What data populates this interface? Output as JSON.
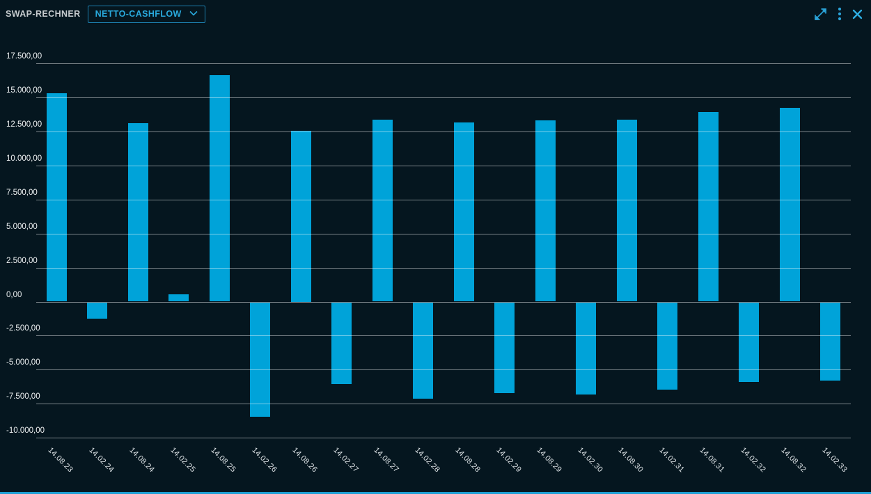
{
  "window": {
    "title": "SWAP-RECHNER",
    "view_selector": {
      "selected": "NETTO-CASHFLOW"
    },
    "toolbar_icons": [
      "expand-icon",
      "kebab-menu-icon",
      "close-icon"
    ]
  },
  "colors": {
    "background": "#05161F",
    "accent": "#29A9DC",
    "bar": "#00A3D9",
    "gridline": "rgba(255,255,255,0.48)",
    "axis_text": "#EDF1F2",
    "bottom_border": "#1E9FD4",
    "dropdown_border": "#1C7FAF"
  },
  "chart_data": {
    "type": "bar",
    "title": "",
    "xlabel": "",
    "ylabel": "",
    "grid": "horizontal",
    "legend": "none",
    "ylim": [
      -10000,
      17500
    ],
    "ytick_step": 2500,
    "ytick_values": [
      17500,
      15000,
      12500,
      10000,
      7500,
      5000,
      2500,
      0,
      -2500,
      -5000,
      -7500,
      -10000
    ],
    "ytick_labels": [
      "17.500,00",
      "15.000,00",
      "12.500,00",
      "10.000,00",
      "7.500,00",
      "5.000,00",
      "2.500,00",
      "0,00",
      "-2.500,00",
      "-5.000,00",
      "-7.500,00",
      "-10.000,00"
    ],
    "categories": [
      "14.08.23",
      "14.02.24",
      "14.08.24",
      "14.02.25",
      "14.08.25",
      "14.02.26",
      "14.08.26",
      "14.02.27",
      "14.08.27",
      "14.02.28",
      "14.08.28",
      "14.02.29",
      "14.08.29",
      "14.02.30",
      "14.08.30",
      "14.02.31",
      "14.08.31",
      "14.02.32",
      "14.08.32",
      "14.02.33"
    ],
    "values": [
      15300,
      -1250,
      13100,
      550,
      16650,
      -8450,
      12550,
      -6050,
      13350,
      -7150,
      13150,
      -6700,
      13300,
      -6800,
      13350,
      -6450,
      13950,
      -5900,
      14250,
      -5800
    ]
  }
}
